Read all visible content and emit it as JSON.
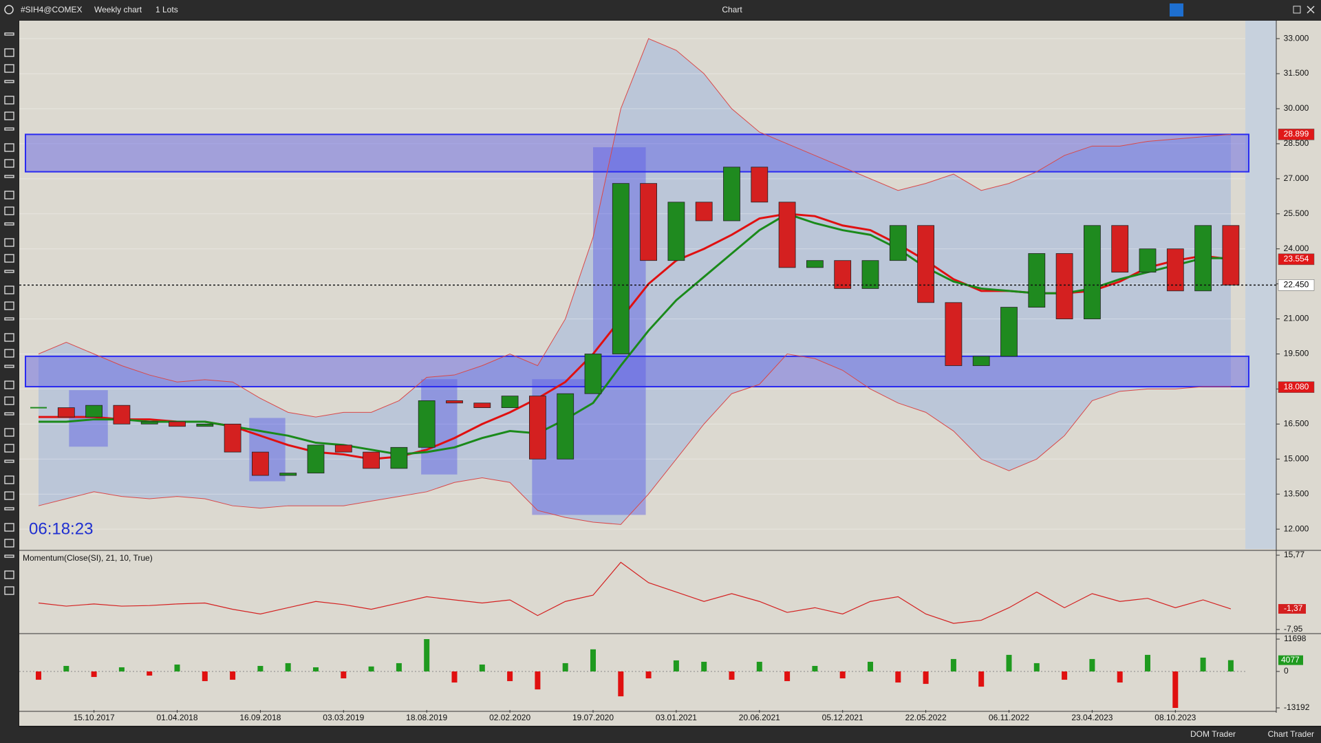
{
  "ui": {
    "symbol": "#SIH4@COMEX",
    "period": "Weekly chart",
    "lots": "1 Lots",
    "window_title": "Chart",
    "dom_trader": "DOM Trader",
    "chart_trader": "Chart Trader"
  },
  "chart_data": [
    {
      "type": "candlestick",
      "categories": [
        null,
        null,
        "15.10.2017",
        null,
        null,
        "01.04.2018",
        null,
        null,
        "16.09.2018",
        null,
        null,
        "03.03.2019",
        null,
        null,
        "18.08.2019",
        null,
        null,
        "02.02.2020",
        null,
        null,
        "19.07.2020",
        null,
        null,
        "03.01.2021",
        null,
        null,
        "20.06.2021",
        null,
        null,
        "05.12.2021",
        null,
        null,
        "22.05.2022",
        null,
        null,
        "06.11.2022",
        null,
        null,
        "23.04.2023",
        null,
        null,
        "08.10.2023",
        null,
        null
      ],
      "close": [
        17.2,
        16.8,
        17.3,
        16.5,
        16.6,
        16.4,
        16.5,
        15.3,
        14.3,
        14.4,
        15.6,
        15.3,
        14.6,
        15.5,
        17.5,
        17.4,
        17.2,
        17.7,
        15.0,
        17.8,
        19.5,
        26.8,
        23.5,
        26.0,
        25.2,
        27.5,
        26.0,
        23.2,
        23.5,
        22.3,
        23.5,
        25.0,
        21.7,
        19.0,
        19.4,
        21.5,
        23.8,
        21.0,
        25.0,
        23.0,
        24.0,
        22.2,
        25.0,
        22.45
      ],
      "up_color": "#1f8a1f",
      "down_color": "#d42020",
      "band_fill": "#b7c3d8",
      "lines": [
        {
          "color": "#d94848",
          "width": 1,
          "values": [
            19.5,
            20.0,
            19.5,
            19.0,
            18.6,
            18.3,
            18.4,
            18.3,
            17.6,
            17.0,
            16.8,
            17.0,
            17.0,
            17.5,
            18.5,
            18.6,
            19.0,
            19.5,
            19.0,
            21.0,
            24.5,
            30.0,
            33.0,
            32.5,
            31.5,
            30.0,
            29.0,
            28.5,
            28.0,
            27.5,
            27.0,
            26.5,
            26.8,
            27.2,
            26.5,
            26.8,
            27.3,
            28.0,
            28.4,
            28.4,
            28.6,
            28.7,
            28.8,
            28.9
          ]
        },
        {
          "color": "#d94848",
          "width": 1,
          "values": [
            13.0,
            13.3,
            13.6,
            13.4,
            13.3,
            13.4,
            13.3,
            13.0,
            12.9,
            13.0,
            13.0,
            13.0,
            13.2,
            13.4,
            13.6,
            14.0,
            14.2,
            14.0,
            12.8,
            12.5,
            12.3,
            12.2,
            13.5,
            15.0,
            16.5,
            17.8,
            18.2,
            19.5,
            19.3,
            18.8,
            18.0,
            17.4,
            17.0,
            16.2,
            15.0,
            14.5,
            15.0,
            16.0,
            17.5,
            17.9,
            18.0,
            18.0,
            18.1,
            18.1
          ]
        },
        {
          "color": "#e01010",
          "width": 3,
          "values": [
            16.8,
            16.8,
            16.8,
            16.7,
            16.7,
            16.6,
            16.6,
            16.4,
            16.0,
            15.6,
            15.3,
            15.2,
            15.0,
            15.1,
            15.4,
            15.9,
            16.5,
            17.0,
            17.6,
            18.3,
            19.5,
            21.0,
            22.5,
            23.5,
            24.0,
            24.6,
            25.3,
            25.5,
            25.4,
            25.0,
            24.8,
            24.2,
            23.5,
            22.7,
            22.2,
            22.2,
            22.1,
            22.1,
            22.2,
            22.6,
            23.2,
            23.5,
            23.7,
            23.55
          ]
        },
        {
          "color": "#1a8a1a",
          "width": 3,
          "values": [
            16.6,
            16.6,
            16.7,
            16.7,
            16.6,
            16.6,
            16.6,
            16.4,
            16.2,
            16.0,
            15.7,
            15.6,
            15.4,
            15.2,
            15.3,
            15.5,
            15.9,
            16.2,
            16.1,
            16.7,
            17.4,
            19.0,
            20.5,
            21.8,
            22.8,
            23.8,
            24.8,
            25.5,
            25.1,
            24.8,
            24.6,
            24.0,
            23.2,
            22.6,
            22.3,
            22.2,
            22.1,
            22.1,
            22.3,
            22.7,
            23.0,
            23.3,
            23.6,
            23.6
          ]
        }
      ],
      "ylim": [
        11.15,
        33.77
      ],
      "yticks": [
        {
          "value": 33,
          "label": "33.000"
        },
        {
          "value": 31.5,
          "label": "31.500"
        },
        {
          "value": 30,
          "label": "30.000"
        },
        {
          "value": 28.5,
          "label": "28.500"
        },
        {
          "value": 27,
          "label": "27.000"
        },
        {
          "value": 25.5,
          "label": "25.500"
        },
        {
          "value": 24,
          "label": "24.000"
        },
        {
          "value": 22.5,
          "label": "22.500"
        },
        {
          "value": 21,
          "label": "21.000"
        },
        {
          "value": 19.5,
          "label": "19.500"
        },
        {
          "value": 18,
          "label": "18.000"
        },
        {
          "value": 16.5,
          "label": "16.500"
        },
        {
          "value": 15,
          "label": "15.000"
        },
        {
          "value": 13.5,
          "label": "13.500"
        },
        {
          "value": 12,
          "label": "12.000"
        }
      ],
      "grid": true,
      "zones": [
        {
          "low": 27.3,
          "high": 28.9
        },
        {
          "low": 18.1,
          "high": 19.4
        }
      ],
      "zone_color": "#5a5ae6",
      "signal_boxes": [
        {
          "x": [
            1.1,
            2.5
          ],
          "y": [
            15.53,
            17.95
          ]
        },
        {
          "x": [
            7.6,
            8.9
          ],
          "y": [
            14.05,
            16.76
          ]
        },
        {
          "x": [
            13.8,
            15.1
          ],
          "y": [
            14.34,
            18.42
          ]
        },
        {
          "x": [
            17.8,
            20.0
          ],
          "y": [
            12.61,
            18.42
          ]
        },
        {
          "x": [
            20.0,
            21.9
          ],
          "y": [
            12.61,
            28.35
          ]
        }
      ],
      "price_markers": [
        {
          "value": 28.899,
          "label": "28.899",
          "color": "#e01818"
        },
        {
          "value": 23.554,
          "label": "23.554",
          "color": "#e01818"
        },
        {
          "value": 22.45,
          "label": "22.450",
          "color": "#ffffff"
        },
        {
          "value": 18.08,
          "label": "18.080",
          "color": "#e01818"
        }
      ],
      "last_price": 22.45,
      "timer": "06:18:23"
    },
    {
      "type": "line",
      "title": "Momentum(Close(SI), 21, 10, True)",
      "values": [
        0.5,
        -0.5,
        0.2,
        -0.5,
        -0.3,
        0.2,
        0.5,
        -1.5,
        -3.0,
        -1.0,
        1.0,
        0,
        -1.5,
        0.5,
        2.5,
        1.5,
        0.5,
        1.5,
        -3.5,
        1.0,
        3.0,
        13.5,
        7.0,
        4.0,
        1.0,
        3.5,
        1.0,
        -2.5,
        -1.0,
        -3.0,
        1.0,
        2.5,
        -3.0,
        -6.0,
        -5.0,
        -1.0,
        4.0,
        -1.0,
        3.5,
        1.0,
        2.0,
        -1.0,
        1.5,
        -1.37
      ],
      "color": "#d42020",
      "ylim": [
        -9.27,
        16.87
      ],
      "yticks": [
        {
          "value": 15.77,
          "label": "15,77"
        },
        {
          "value": -7.95,
          "label": "-7,95"
        }
      ],
      "last": {
        "value": -1.37,
        "label": "-1,37"
      }
    },
    {
      "type": "bar",
      "values": [
        -3000,
        2000,
        -2000,
        1500,
        -1500,
        2500,
        -3500,
        -3000,
        2000,
        3000,
        1500,
        -2500,
        1800,
        3000,
        11698,
        -4000,
        2500,
        -3500,
        -6500,
        3000,
        8000,
        -9000,
        -2500,
        4000,
        3500,
        -3000,
        3500,
        -3500,
        2000,
        -2500,
        3500,
        -4000,
        -4500,
        4500,
        -5500,
        6000,
        3000,
        -3000,
        4500,
        -4000,
        6000,
        -13192,
        5000,
        4077
      ],
      "up_color": "#1f9a1f",
      "down_color": "#e01010",
      "ylim": [
        -13939,
        13191
      ],
      "yticks": [
        11698,
        0,
        -13192
      ]
    }
  ]
}
